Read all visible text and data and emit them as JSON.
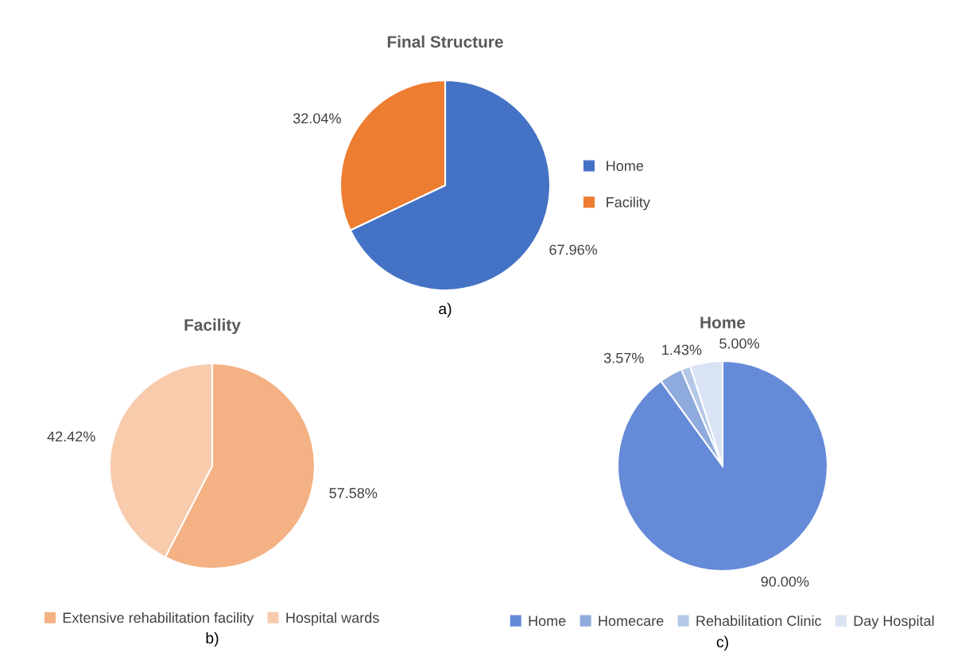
{
  "chart_data": [
    {
      "type": "pie",
      "title": "Final Structure",
      "categories": [
        "Home",
        "Facility"
      ],
      "values": [
        67.96,
        32.04
      ],
      "colors": [
        "#4472c4",
        "#ed7d31"
      ],
      "value_labels": [
        "67.96%",
        "32.04%"
      ],
      "legend": "right",
      "annotations": [
        "a)"
      ]
    },
    {
      "type": "pie",
      "title": "Facility",
      "categories": [
        "Extensive rehabilitation facility",
        "Hospital wards"
      ],
      "values": [
        57.58,
        42.42
      ],
      "colors": [
        "#f4b183",
        "#f8cbad"
      ],
      "value_labels": [
        "57.58%",
        "42.42%"
      ],
      "legend": "bottom",
      "annotations": [
        "b)"
      ]
    },
    {
      "type": "pie",
      "title": "Home",
      "categories": [
        "Home",
        "Homecare",
        "Rehabilitation Clinic",
        "Day Hospital"
      ],
      "values": [
        90.0,
        3.57,
        1.43,
        5.0
      ],
      "colors": [
        "#658ad8",
        "#8faadc",
        "#b4c7e7",
        "#dae3f3"
      ],
      "value_labels": [
        "90.00%",
        "3.57%",
        "1.43%",
        "5.00%"
      ],
      "legend": "bottom",
      "annotations": [
        "c)"
      ]
    }
  ]
}
